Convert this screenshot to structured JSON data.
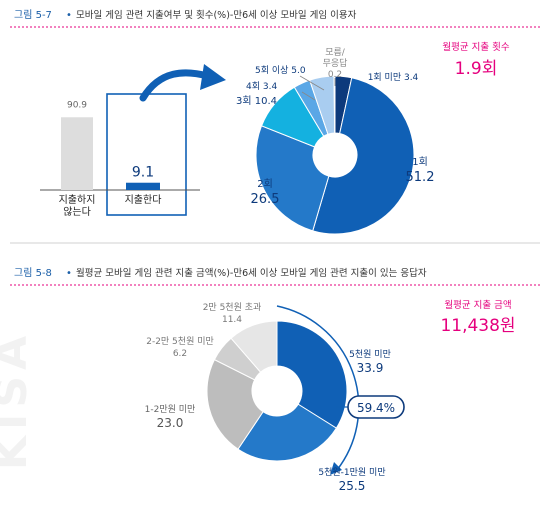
{
  "colors": {
    "accent": "#e5007e",
    "figure_label": "#1b5fa8",
    "blue_dark": "#0d3a7c",
    "blue": "#1060b5",
    "blue_mid": "#2479c9",
    "blue_light": "#5aa7e6",
    "blue_pale": "#a9cdf0",
    "cyan": "#14b1e0",
    "gray_dark": "#bdbdbd",
    "gray": "#cfcfcf",
    "gray_light": "#e6e6e6",
    "text": "#333333"
  },
  "figure1": {
    "label": "그림 5-7",
    "bullet": "•",
    "title": "모바일 게임 관련 지출여부 및 횟수(%)-만6세 이상 모바일 게임 이용자",
    "summary_label": "월평균 지출 횟수",
    "summary_value": "1.9회"
  },
  "figure2": {
    "label": "그림 5-8",
    "bullet": "•",
    "title": "월평균 모바일 게임 관련 지출 금액(%)-만6세 이상 모바일 게임 관련 지출이 있는 응답자",
    "summary_label": "월평균 지출 금액",
    "summary_value": "11,438원",
    "highlight_value": "59.4%"
  },
  "watermark": "KISA",
  "chart_data": [
    {
      "type": "bar",
      "categories": [
        [
          "지출하지",
          "않는다"
        ],
        [
          "지출한다"
        ]
      ],
      "values": [
        90.9,
        9.1
      ],
      "ylim": [
        0,
        100
      ]
    },
    {
      "type": "pie",
      "hole": true,
      "slices": [
        {
          "label": "1회 미만",
          "value": 3.4,
          "color": "#0d3a7c"
        },
        {
          "label": "1회",
          "value": 51.2,
          "color": "#1060b5"
        },
        {
          "label": "2회",
          "value": 26.5,
          "color": "#2479c9"
        },
        {
          "label": "3회",
          "value": 10.4,
          "color": "#14b1e0"
        },
        {
          "label": "4회",
          "value": 3.4,
          "color": "#5aa7e6"
        },
        {
          "label": "5회 이상",
          "value": 5.0,
          "color": "#a9cdf0"
        },
        {
          "label": "모름/무응답",
          "value": 0.2,
          "color": "#e6e6e6"
        }
      ]
    },
    {
      "type": "pie",
      "hole": true,
      "slices": [
        {
          "label": "5천원 미만",
          "value": 33.9,
          "color": "#1060b5"
        },
        {
          "label": "5천원-1만원 미만",
          "value": 25.5,
          "color": "#2479c9"
        },
        {
          "label": "1-2만원 미만",
          "value": 23.0,
          "color": "#bdbdbd"
        },
        {
          "label": "2-2만 5천원 미만",
          "value": 6.2,
          "color": "#cfcfcf"
        },
        {
          "label": "2만 5천원 초과",
          "value": 11.4,
          "color": "#e6e6e6"
        }
      ]
    }
  ]
}
